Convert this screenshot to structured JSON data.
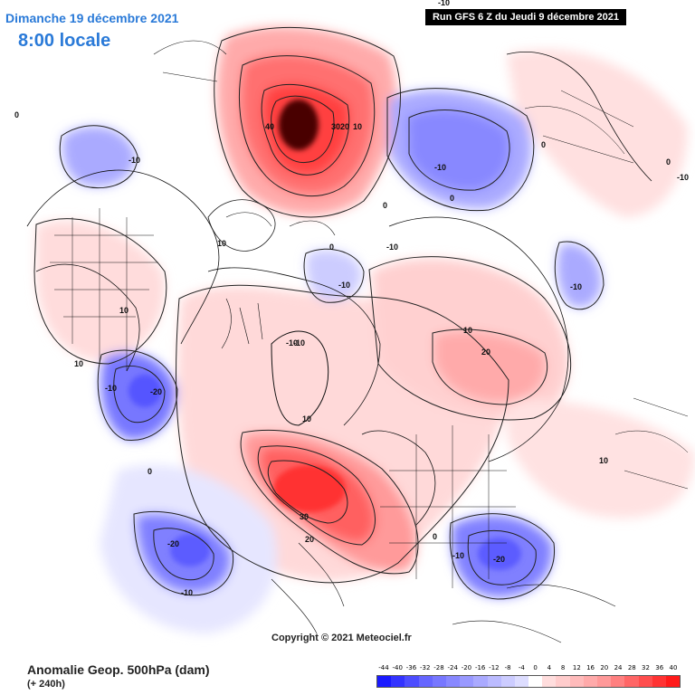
{
  "header": {
    "date": "Dimanche 19 décembre 2021",
    "local_time": "8:00 locale",
    "run_info": "Run GFS 6 Z du Jeudi 9 décembre 2021"
  },
  "footer": {
    "copyright": "Copyright © 2021 Meteociel.fr",
    "field_title": "Anomalie Geop. 500hPa (dam)",
    "lead_time": "(+ 240h)"
  },
  "legend": {
    "ticks": [
      "-44",
      "-40",
      "-36",
      "-32",
      "-28",
      "-24",
      "-20",
      "-16",
      "-12",
      "-8",
      "-4",
      "0",
      "4",
      "8",
      "12",
      "16",
      "20",
      "24",
      "28",
      "32",
      "36",
      "40"
    ],
    "colors": [
      "#1a1aff",
      "#3333ff",
      "#4d4dff",
      "#6666ff",
      "#7777ff",
      "#8888ff",
      "#9999ff",
      "#aaaaff",
      "#bbbbff",
      "#ccccff",
      "#ddddff",
      "#ffffff",
      "#ffdddd",
      "#ffcccc",
      "#ffbbbb",
      "#ffaaaa",
      "#ff9999",
      "#ff8080",
      "#ff6666",
      "#ff4d4d",
      "#ff3333",
      "#ff1a1a"
    ]
  },
  "contour_labels": [
    {
      "id": "l1",
      "text": "40"
    },
    {
      "id": "l2",
      "text": "3020"
    },
    {
      "id": "l3",
      "text": "10"
    },
    {
      "id": "l4",
      "text": "-10"
    },
    {
      "id": "l5",
      "text": "-10"
    },
    {
      "id": "l6",
      "text": "0"
    },
    {
      "id": "l7",
      "text": "-10"
    },
    {
      "id": "l8",
      "text": "-10"
    },
    {
      "id": "l9",
      "text": "0"
    },
    {
      "id": "l10",
      "text": "-10"
    },
    {
      "id": "l11",
      "text": "10"
    },
    {
      "id": "l12",
      "text": "20"
    },
    {
      "id": "l13",
      "text": "-10"
    },
    {
      "id": "l14",
      "text": "10"
    },
    {
      "id": "l15",
      "text": "10"
    },
    {
      "id": "l16",
      "text": "-20"
    },
    {
      "id": "l17",
      "text": "-10"
    },
    {
      "id": "l18",
      "text": "10"
    },
    {
      "id": "l19",
      "text": "10"
    },
    {
      "id": "l20",
      "text": "30"
    },
    {
      "id": "l21",
      "text": "20"
    },
    {
      "id": "l22",
      "text": "-20"
    },
    {
      "id": "l23",
      "text": "-10"
    },
    {
      "id": "l24",
      "text": "0"
    },
    {
      "id": "l25",
      "text": "-20"
    },
    {
      "id": "l26",
      "text": "-10"
    },
    {
      "id": "l27",
      "text": "-10"
    },
    {
      "id": "l28",
      "text": "0"
    },
    {
      "id": "l29",
      "text": "10"
    },
    {
      "id": "l30",
      "text": "-10"
    },
    {
      "id": "l31",
      "text": "0"
    },
    {
      "id": "l32",
      "text": "0"
    },
    {
      "id": "l33",
      "text": "0"
    },
    {
      "id": "l34",
      "text": "0"
    },
    {
      "id": "l35",
      "text": "-10"
    }
  ]
}
